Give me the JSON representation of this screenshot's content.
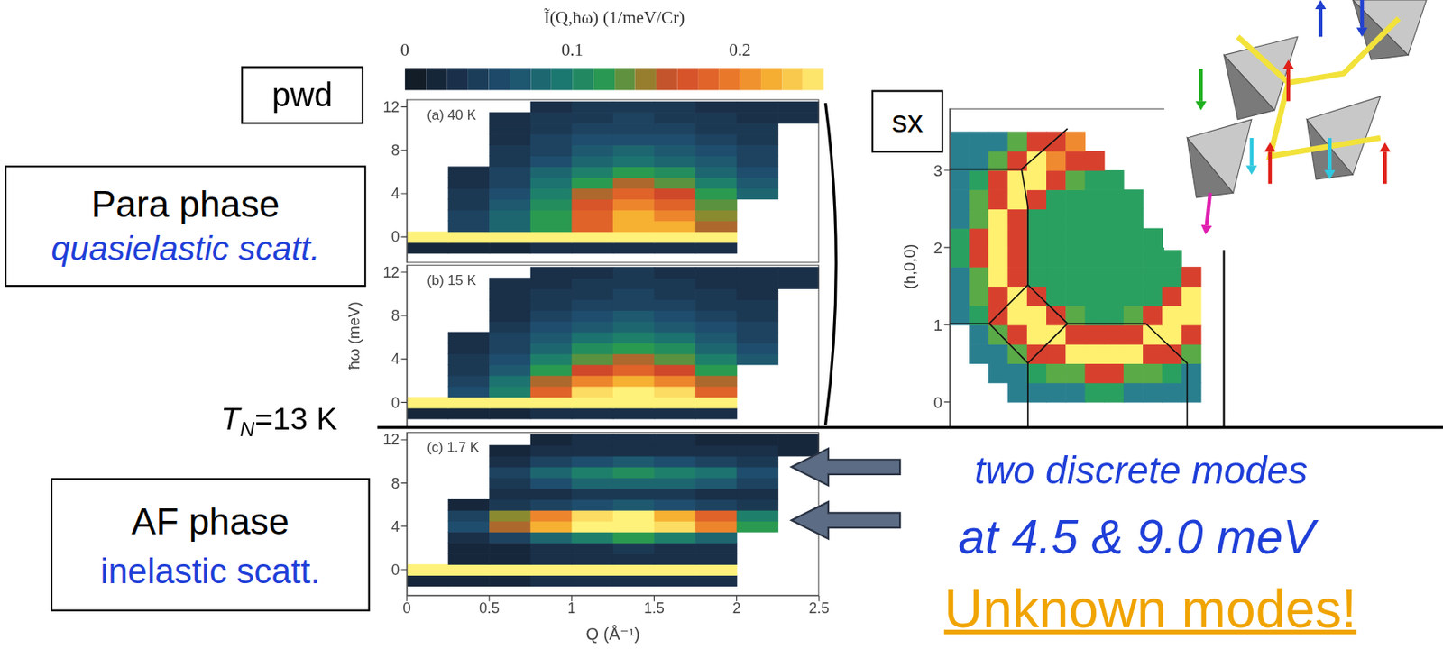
{
  "slide": {
    "pwd_tag": "pwd",
    "sx_tag": "sx",
    "para_box": {
      "title": "Para phase",
      "subtitle": "quasielastic scatt."
    },
    "af_box": {
      "title": "AF phase",
      "subtitle": "inelastic scatt."
    },
    "tn_label": {
      "symbol": "T",
      "subscript": "N",
      "text": "=13 K"
    },
    "modes_text": [
      "two discrete modes",
      "at 4.5 & 9.0 meV"
    ],
    "highlight": "Unknown modes!",
    "colorbar": {
      "label": "Ĩ(Q,ħω) (1/meV/Cr)",
      "zlim": [
        0,
        0.25
      ],
      "ticks": [
        0,
        0.1,
        0.2
      ]
    }
  },
  "chart_data": [
    {
      "type": "heatmap",
      "label": "(a) 40 K",
      "tick_labels": "y",
      "xlim": [
        0,
        2.5
      ],
      "ylim": [
        -2.4,
        12.7
      ],
      "yticks": [
        0,
        4,
        8,
        12
      ],
      "x": [
        0.125,
        0.375,
        0.625,
        0.875,
        1.125,
        1.375,
        1.625,
        1.875,
        2.125,
        2.375
      ],
      "y": [
        -1,
        0,
        1,
        2,
        3,
        4,
        5,
        6,
        7,
        8,
        9,
        10,
        11,
        12
      ],
      "cells": [
        [
          0.02,
          0.02,
          0.02,
          0.03,
          0.03,
          0.03,
          0.03,
          0.03,
          null,
          null
        ],
        [
          0.25,
          0.25,
          0.25,
          0.25,
          0.25,
          0.25,
          0.25,
          0.25,
          null,
          null
        ],
        [
          null,
          0.05,
          0.08,
          0.12,
          0.18,
          0.22,
          0.22,
          0.15,
          null,
          null
        ],
        [
          null,
          0.05,
          0.08,
          0.12,
          0.18,
          0.22,
          0.2,
          0.14,
          null,
          null
        ],
        [
          null,
          0.04,
          0.07,
          0.11,
          0.17,
          0.2,
          0.18,
          0.13,
          null,
          null
        ],
        [
          null,
          0.04,
          0.06,
          0.1,
          0.15,
          0.18,
          0.16,
          0.12,
          0.08,
          null
        ],
        [
          null,
          0.03,
          0.05,
          0.09,
          0.12,
          0.15,
          0.13,
          0.1,
          0.07,
          null
        ],
        [
          null,
          0.03,
          0.05,
          0.08,
          0.1,
          0.12,
          0.11,
          0.08,
          0.06,
          null
        ],
        [
          null,
          null,
          0.04,
          0.06,
          0.08,
          0.09,
          0.08,
          0.07,
          0.05,
          null
        ],
        [
          null,
          null,
          0.04,
          0.05,
          0.07,
          0.08,
          0.07,
          0.06,
          0.05,
          null
        ],
        [
          null,
          null,
          0.03,
          0.05,
          0.06,
          0.06,
          0.06,
          0.05,
          0.04,
          null
        ],
        [
          null,
          null,
          0.03,
          0.04,
          0.05,
          0.05,
          0.05,
          0.04,
          0.04,
          null
        ],
        [
          null,
          null,
          0.03,
          0.04,
          0.04,
          0.05,
          0.04,
          0.04,
          0.03,
          0.03
        ],
        [
          null,
          null,
          null,
          0.03,
          0.04,
          0.04,
          0.04,
          0.03,
          0.03,
          0.03
        ]
      ]
    },
    {
      "type": "heatmap",
      "label": "(b) 15 K",
      "tick_labels": "y",
      "ylabel": "ħω (meV)",
      "xlim": [
        0,
        2.5
      ],
      "ylim": [
        -2.4,
        12.7
      ],
      "yticks": [
        0,
        4,
        8,
        12
      ],
      "x": [
        0.125,
        0.375,
        0.625,
        0.875,
        1.125,
        1.375,
        1.625,
        1.875,
        2.125,
        2.375
      ],
      "y": [
        -1,
        0,
        1,
        2,
        3,
        4,
        5,
        6,
        7,
        8,
        9,
        10,
        11,
        12
      ],
      "cells": [
        [
          0.02,
          0.02,
          0.02,
          0.03,
          0.03,
          0.03,
          0.03,
          0.03,
          null,
          null
        ],
        [
          0.25,
          0.25,
          0.25,
          0.25,
          0.25,
          0.25,
          0.25,
          0.25,
          null,
          null
        ],
        [
          null,
          0.06,
          0.1,
          0.18,
          0.24,
          0.25,
          0.24,
          0.18,
          null,
          null
        ],
        [
          null,
          0.05,
          0.09,
          0.15,
          0.2,
          0.22,
          0.2,
          0.15,
          null,
          null
        ],
        [
          null,
          0.04,
          0.07,
          0.12,
          0.16,
          0.18,
          0.16,
          0.12,
          null,
          null
        ],
        [
          null,
          0.04,
          0.06,
          0.1,
          0.13,
          0.15,
          0.13,
          0.1,
          0.07,
          null
        ],
        [
          null,
          0.03,
          0.05,
          0.08,
          0.11,
          0.12,
          0.11,
          0.08,
          0.06,
          null
        ],
        [
          null,
          0.03,
          0.05,
          0.07,
          0.09,
          0.1,
          0.09,
          0.07,
          0.05,
          null
        ],
        [
          null,
          null,
          0.04,
          0.06,
          0.07,
          0.08,
          0.07,
          0.06,
          0.05,
          null
        ],
        [
          null,
          null,
          0.03,
          0.05,
          0.06,
          0.07,
          0.06,
          0.05,
          0.04,
          null
        ],
        [
          null,
          null,
          0.03,
          0.04,
          0.05,
          0.05,
          0.05,
          0.04,
          0.04,
          null
        ],
        [
          null,
          null,
          0.03,
          0.04,
          0.04,
          0.05,
          0.04,
          0.04,
          0.03,
          null
        ],
        [
          null,
          null,
          0.03,
          0.03,
          0.04,
          0.04,
          0.04,
          0.03,
          0.03,
          0.03
        ],
        [
          null,
          null,
          null,
          0.03,
          0.03,
          0.04,
          0.03,
          0.03,
          0.03,
          0.03
        ]
      ]
    },
    {
      "type": "heatmap",
      "label": "(c) 1.7 K",
      "tick_labels": true,
      "xlabel": "Q (Å⁻¹)",
      "xlim": [
        0,
        2.5
      ],
      "ylim": [
        -2.4,
        12.7
      ],
      "xticks": [
        0,
        0.5,
        1,
        1.5,
        2,
        2.5
      ],
      "yticks": [
        0,
        4,
        8,
        12
      ],
      "x": [
        0.125,
        0.375,
        0.625,
        0.875,
        1.125,
        1.375,
        1.625,
        1.875,
        2.125,
        2.375
      ],
      "y": [
        -1,
        0,
        1,
        2,
        3,
        4,
        5,
        6,
        7,
        8,
        9,
        10,
        11,
        12
      ],
      "cells": [
        [
          0.02,
          0.02,
          0.02,
          0.03,
          0.03,
          0.03,
          0.03,
          0.03,
          null,
          null
        ],
        [
          0.25,
          0.25,
          0.25,
          0.25,
          0.25,
          0.25,
          0.25,
          0.25,
          null,
          null
        ],
        [
          null,
          0.02,
          0.02,
          0.03,
          0.03,
          0.03,
          0.03,
          0.03,
          null,
          null
        ],
        [
          null,
          0.02,
          0.02,
          0.03,
          0.03,
          0.04,
          0.03,
          0.03,
          null,
          null
        ],
        [
          null,
          0.03,
          0.05,
          0.08,
          0.1,
          0.12,
          0.1,
          0.08,
          null,
          null
        ],
        [
          null,
          0.06,
          0.15,
          0.22,
          0.25,
          0.25,
          0.24,
          0.2,
          0.12,
          null
        ],
        [
          null,
          0.05,
          0.14,
          0.2,
          0.24,
          0.25,
          0.22,
          0.18,
          0.1,
          null
        ],
        [
          null,
          0.02,
          0.04,
          0.05,
          0.06,
          0.07,
          0.06,
          0.05,
          0.04,
          null
        ],
        [
          null,
          null,
          0.03,
          0.03,
          0.04,
          0.04,
          0.04,
          0.03,
          0.03,
          null
        ],
        [
          null,
          null,
          0.04,
          0.06,
          0.08,
          0.08,
          0.08,
          0.07,
          0.05,
          null
        ],
        [
          null,
          null,
          0.05,
          0.08,
          0.1,
          0.11,
          0.1,
          0.09,
          0.06,
          null
        ],
        [
          null,
          null,
          0.03,
          0.05,
          0.06,
          0.07,
          0.06,
          0.05,
          0.04,
          null
        ],
        [
          null,
          null,
          0.02,
          0.03,
          0.03,
          0.03,
          0.03,
          0.03,
          0.03,
          0.02
        ],
        [
          null,
          null,
          null,
          0.02,
          0.03,
          0.03,
          0.03,
          0.02,
          0.02,
          0.02
        ]
      ]
    },
    {
      "type": "heatmap",
      "tick_labels": "y",
      "ylabel": "(h,0,0)",
      "xlim": [
        0,
        3.55
      ],
      "ylim": [
        -0.33,
        3.8
      ],
      "yticks": [
        0,
        1,
        2,
        3
      ],
      "zlim": [
        0,
        1
      ],
      "x": [
        0.125,
        0.375,
        0.625,
        0.875,
        1.125,
        1.375,
        1.625,
        1.875,
        2.125,
        2.375,
        2.625,
        2.875,
        3.125
      ],
      "y": [
        0.125,
        0.375,
        0.625,
        0.875,
        1.125,
        1.375,
        1.625,
        1.875,
        2.125,
        2.375,
        2.625,
        2.875,
        3.125,
        3.375
      ],
      "cells": [
        [
          null,
          null,
          null,
          0.25,
          0.25,
          0.25,
          0.25,
          0.35,
          0.35,
          0.25,
          0.25,
          0.25,
          0.25
        ],
        [
          null,
          null,
          0.25,
          0.25,
          0.35,
          0.45,
          0.45,
          0.6,
          0.6,
          0.45,
          0.45,
          0.35,
          0.25
        ],
        [
          null,
          0.25,
          0.25,
          0.45,
          0.6,
          0.6,
          1,
          1,
          1,
          1,
          0.6,
          0.6,
          0.45
        ],
        [
          null,
          0.25,
          0.45,
          0.6,
          1,
          1,
          0.6,
          0.6,
          0.6,
          0.6,
          1,
          1,
          0.6
        ],
        [
          0.25,
          0.35,
          0.6,
          1,
          1,
          0.6,
          0.45,
          0.35,
          0.35,
          0.45,
          0.6,
          1,
          1
        ],
        [
          0.25,
          0.45,
          0.6,
          1,
          0.6,
          0.35,
          0.35,
          0.35,
          0.35,
          0.35,
          0.35,
          0.6,
          1
        ],
        [
          0.25,
          0.45,
          1,
          0.6,
          0.35,
          0.35,
          0.35,
          0.35,
          0.35,
          0.35,
          0.35,
          0.35,
          0.6
        ],
        [
          0.35,
          0.6,
          1,
          0.6,
          0.35,
          0.35,
          0.35,
          0.35,
          0.35,
          0.35,
          0.35,
          0.35,
          null
        ],
        [
          0.35,
          0.6,
          1,
          0.6,
          0.35,
          0.35,
          0.35,
          0.35,
          0.35,
          0.35,
          0.35,
          null,
          null
        ],
        [
          0.25,
          0.45,
          1,
          0.6,
          0.35,
          0.35,
          0.35,
          0.35,
          0.35,
          0.35,
          null,
          null,
          null
        ],
        [
          0.25,
          0.45,
          0.6,
          1,
          0.6,
          0.35,
          0.35,
          0.35,
          0.35,
          0.35,
          null,
          null,
          null
        ],
        [
          0.25,
          0.35,
          0.6,
          1,
          1,
          0.6,
          0.45,
          0.35,
          0.35,
          null,
          null,
          null,
          null
        ],
        [
          0.25,
          0.25,
          0.45,
          0.6,
          1,
          0.8,
          0.6,
          0.6,
          null,
          null,
          null,
          null,
          null
        ],
        [
          0.25,
          0.25,
          0.25,
          0.45,
          0.6,
          0.6,
          0.8,
          null,
          null,
          null,
          null,
          null,
          null
        ]
      ]
    }
  ]
}
